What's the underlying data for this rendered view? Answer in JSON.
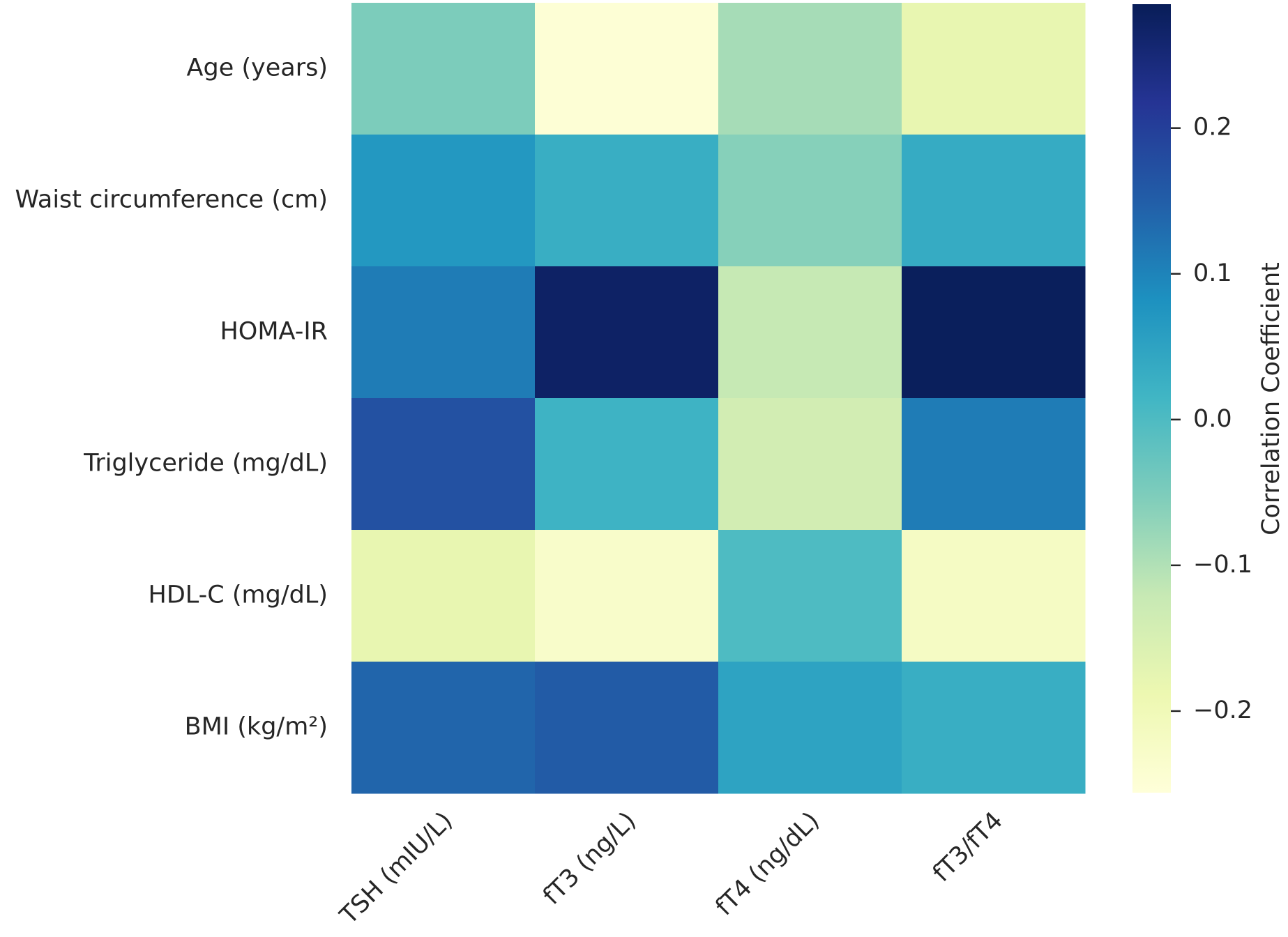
{
  "chart_data": {
    "type": "heatmap",
    "x_categories": [
      "TSH (mIU/L)",
      "fT3 (ng/L)",
      "fT4 (ng/dL)",
      "fT3/fT4"
    ],
    "y_categories": [
      "Age (years)",
      "Waist circumference (cm)",
      "HOMA-IR",
      "Triglyceride (mg/dL)",
      "HDL-C (mg/dL)",
      "BMI (kg/m²)"
    ],
    "values": [
      [
        -0.05,
        -0.25,
        -0.09,
        -0.18
      ],
      [
        0.07,
        0.03,
        -0.06,
        0.035
      ],
      [
        0.11,
        0.27,
        -0.12,
        0.28
      ],
      [
        0.17,
        0.02,
        -0.14,
        0.11
      ],
      [
        -0.18,
        -0.23,
        0.0,
        -0.22
      ],
      [
        0.14,
        0.155,
        0.05,
        0.03
      ]
    ],
    "colormap": [
      "#ffffd9",
      "#edf8b1",
      "#c7e9b4",
      "#7fcdbb",
      "#41b6c4",
      "#1d91c0",
      "#225ea8",
      "#253494",
      "#081d58"
    ],
    "colorbar_label": "Correlation Coefficient",
    "clim": [
      -0.256,
      0.285
    ],
    "cticks": [
      {
        "value": -0.2,
        "label": "−0.2"
      },
      {
        "value": -0.1,
        "label": "−0.1"
      },
      {
        "value": 0,
        "label": "0.0"
      },
      0.1,
      0.2
    ]
  }
}
